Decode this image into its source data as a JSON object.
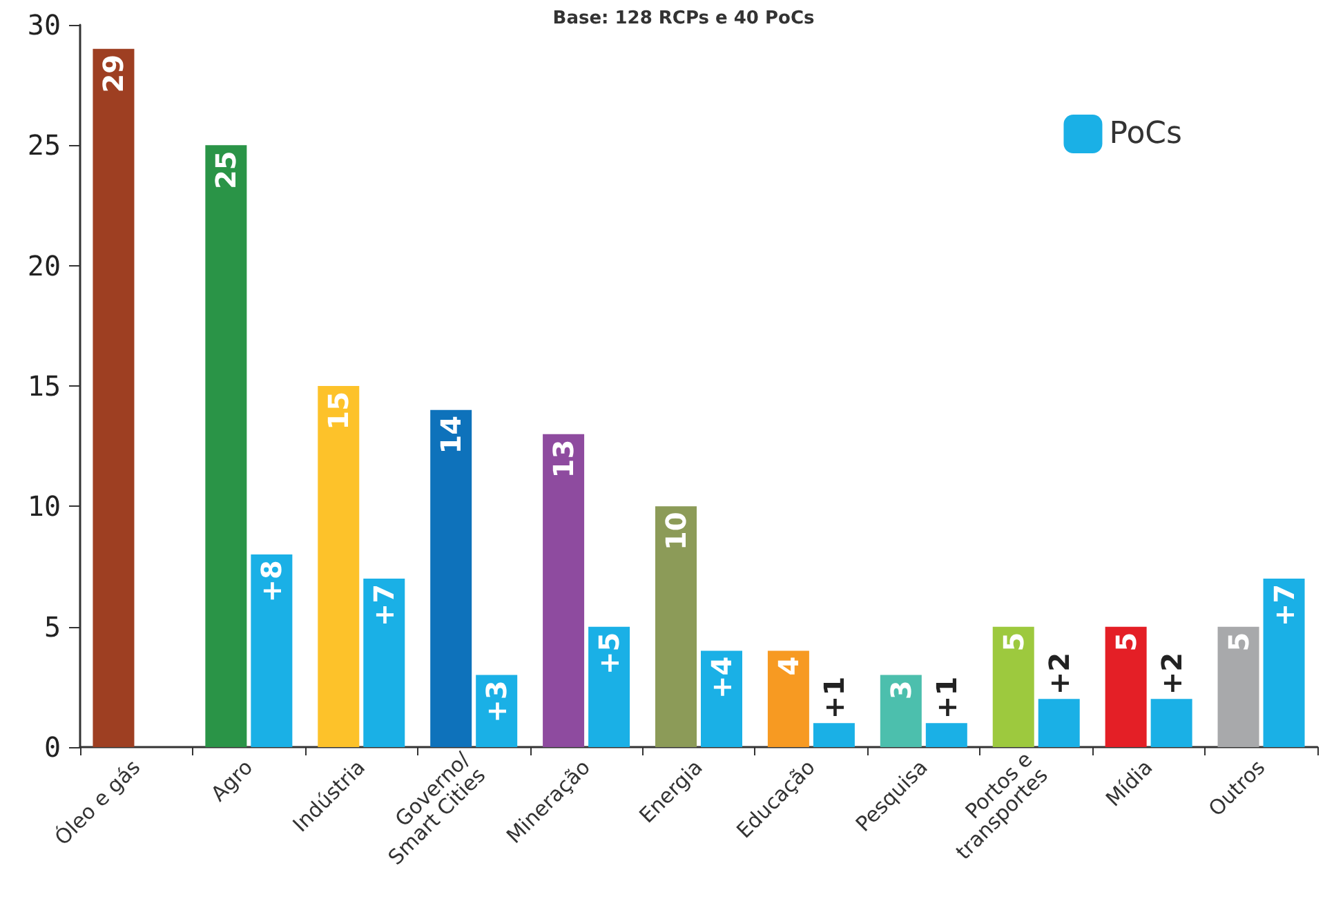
{
  "chart_data": {
    "type": "bar",
    "title": "Base: 128 RCPs e 40 PoCs",
    "categories": [
      "Óleo e gás",
      "Agro",
      "Indústria",
      "Governo/\nSmart Cities",
      "Mineração",
      "Energia",
      "Educação",
      "Pesquisa",
      "Portos e\ntransportes",
      "Mídia",
      "Outros"
    ],
    "series": [
      {
        "colors": [
          "#9e3f22",
          "#2a9447",
          "#fdc22a",
          "#0e72bb",
          "#8e4b9f",
          "#8c9b58",
          "#f79a22",
          "#4cbfad",
          "#9dc93e",
          "#e41f26",
          "#a8a9ab"
        ],
        "values": [
          29,
          25,
          15,
          14,
          13,
          10,
          4,
          3,
          5,
          5,
          5
        ],
        "data_labels": true
      },
      {
        "name": "PoCs",
        "color": "#1ab0e6",
        "values": [
          null,
          8,
          7,
          3,
          5,
          4,
          1,
          1,
          2,
          2,
          7
        ],
        "value_labels": [
          null,
          "+8",
          "+7",
          "+3",
          "+5",
          "+4",
          "+1",
          "+1",
          "+2",
          "+2",
          "+7"
        ]
      }
    ],
    "ylim": [
      0,
      30
    ],
    "yticks": [
      0,
      5,
      10,
      15,
      20,
      25,
      30
    ],
    "grid": false,
    "legend": "top right"
  }
}
